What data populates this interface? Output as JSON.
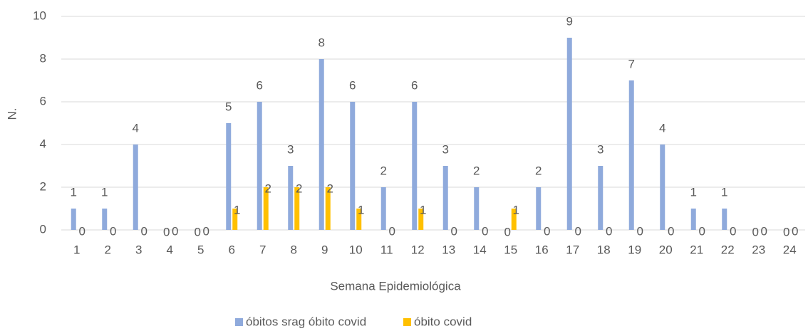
{
  "chart_data": {
    "type": "bar",
    "categories": [
      "1",
      "2",
      "3",
      "4",
      "5",
      "6",
      "7",
      "8",
      "9",
      "10",
      "11",
      "12",
      "13",
      "14",
      "15",
      "16",
      "17",
      "18",
      "19",
      "20",
      "21",
      "22",
      "23",
      "24"
    ],
    "series": [
      {
        "name": "óbitos srag óbito covid",
        "color": "#8faadc",
        "values": [
          1,
          1,
          4,
          0,
          0,
          5,
          6,
          3,
          8,
          6,
          2,
          6,
          3,
          2,
          0,
          2,
          9,
          3,
          7,
          4,
          1,
          1,
          0,
          0
        ]
      },
      {
        "name": "óbito covid",
        "color": "#ffc000",
        "values": [
          0,
          0,
          0,
          0,
          0,
          1,
          2,
          2,
          2,
          1,
          0,
          1,
          0,
          0,
          1,
          0,
          0,
          0,
          0,
          0,
          0,
          0,
          0,
          0
        ]
      }
    ],
    "x_label": "Semana Epidemiológica",
    "y_label": "N.",
    "ylim": [
      0,
      10
    ],
    "yticks": [
      0,
      2,
      4,
      6,
      8,
      10
    ],
    "grid": true,
    "legend": "bottom"
  }
}
